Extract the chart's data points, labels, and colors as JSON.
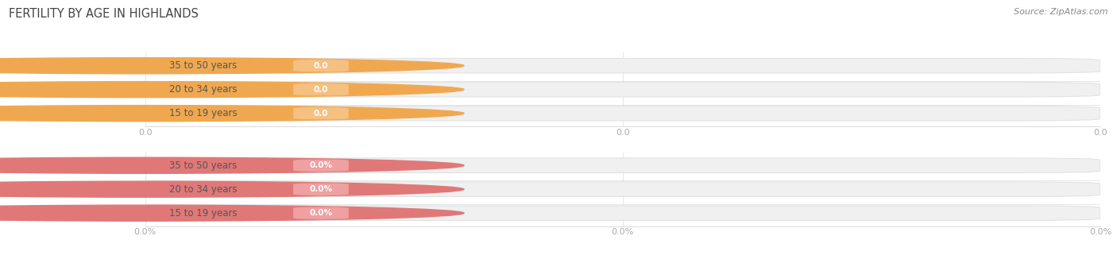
{
  "title": "FERTILITY BY AGE IN HIGHLANDS",
  "source_text": "Source: ZipAtlas.com",
  "top_group": {
    "labels": [
      "15 to 19 years",
      "20 to 34 years",
      "35 to 50 years"
    ],
    "values": [
      0.0,
      0.0,
      0.0
    ],
    "bar_bg_color": "#f0f0f0",
    "bar_border_color": "#e0e0e0",
    "badge_color": "#f5c080",
    "circle_color": "#f0a850",
    "value_label_color": "#ffffff",
    "value_suffix": "",
    "tick_labels": [
      "0.0",
      "0.0",
      "0.0"
    ]
  },
  "bottom_group": {
    "labels": [
      "15 to 19 years",
      "20 to 34 years",
      "35 to 50 years"
    ],
    "values": [
      0.0,
      0.0,
      0.0
    ],
    "bar_bg_color": "#f0f0f0",
    "bar_border_color": "#e0e0e0",
    "badge_color": "#f0a0a0",
    "circle_color": "#e07878",
    "value_label_color": "#ffffff",
    "value_suffix": "%",
    "tick_labels": [
      "0.0%",
      "0.0%",
      "0.0%"
    ]
  },
  "bg_color": "#ffffff",
  "title_color": "#444444",
  "title_fontsize": 10.5,
  "label_color": "#555555",
  "tick_color": "#aaaaaa",
  "source_color": "#888888"
}
